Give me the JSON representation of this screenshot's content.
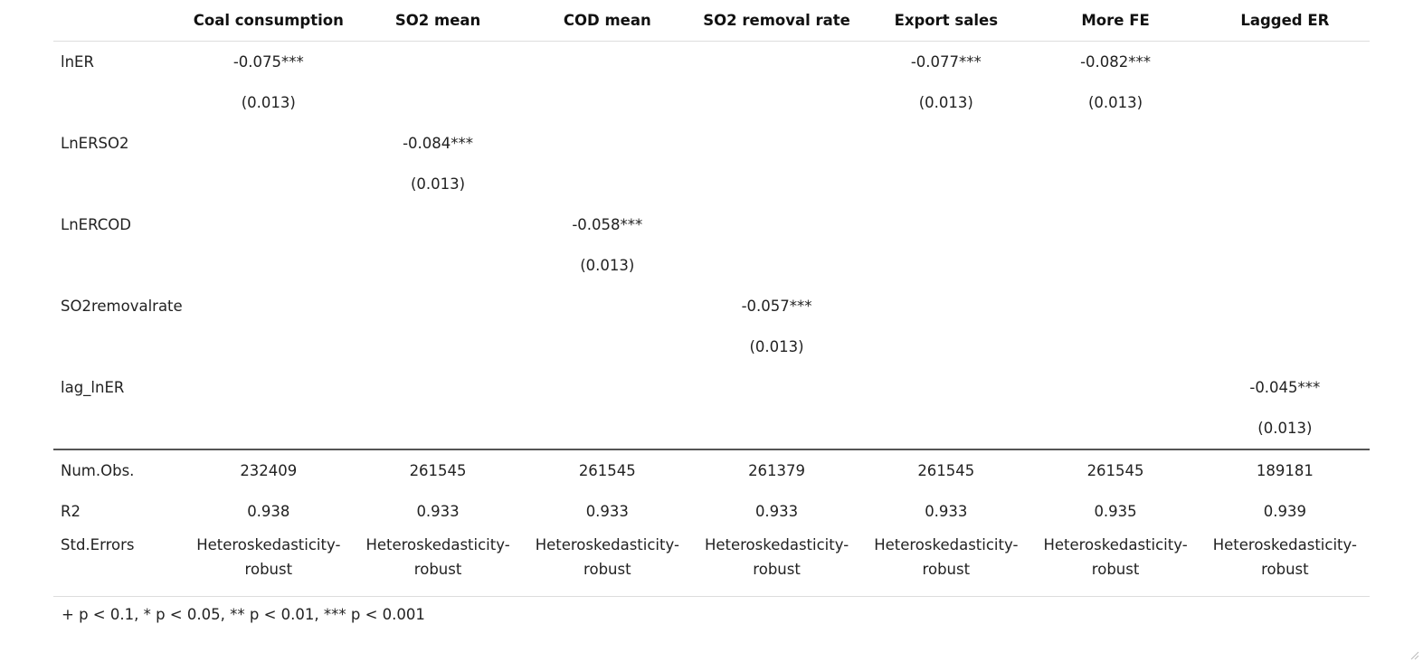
{
  "table": {
    "columns": [
      "",
      "Coal consumption",
      "SO2 mean",
      "COD mean",
      "SO2 removal rate",
      "Export sales",
      "More FE",
      "Lagged ER"
    ],
    "coefficient_rows": [
      {
        "cells": [
          "lnER",
          "-0.075***",
          "",
          "",
          "",
          "-0.077***",
          "-0.082***",
          ""
        ]
      },
      {
        "cells": [
          "",
          "(0.013)",
          "",
          "",
          "",
          "(0.013)",
          "(0.013)",
          ""
        ]
      },
      {
        "cells": [
          "LnERSO2",
          "",
          "-0.084***",
          "",
          "",
          "",
          "",
          ""
        ]
      },
      {
        "cells": [
          "",
          "",
          "(0.013)",
          "",
          "",
          "",
          "",
          ""
        ]
      },
      {
        "cells": [
          "LnERCOD",
          "",
          "",
          "-0.058***",
          "",
          "",
          "",
          ""
        ]
      },
      {
        "cells": [
          "",
          "",
          "",
          "(0.013)",
          "",
          "",
          "",
          ""
        ]
      },
      {
        "cells": [
          "SO2removalrate",
          "",
          "",
          "",
          "-0.057***",
          "",
          "",
          ""
        ]
      },
      {
        "cells": [
          "",
          "",
          "",
          "",
          "(0.013)",
          "",
          "",
          ""
        ]
      },
      {
        "cells": [
          "lag_lnER",
          "",
          "",
          "",
          "",
          "",
          "",
          "-0.045***"
        ]
      },
      {
        "cells": [
          "",
          "",
          "",
          "",
          "",
          "",
          "",
          "(0.013)"
        ]
      }
    ],
    "stat_rows": [
      {
        "cells": [
          "Num.Obs.",
          "232409",
          "261545",
          "261545",
          "261379",
          "261545",
          "261545",
          "189181"
        ]
      },
      {
        "cells": [
          "R2",
          "0.938",
          "0.933",
          "0.933",
          "0.933",
          "0.933",
          "0.935",
          "0.939"
        ]
      },
      {
        "cells": [
          "Std.Errors",
          "Heteroskedasticity-robust",
          "Heteroskedasticity-robust",
          "Heteroskedasticity-robust",
          "Heteroskedasticity-robust",
          "Heteroskedasticity-robust",
          "Heteroskedasticity-robust",
          "Heteroskedasticity-robust"
        ]
      }
    ]
  },
  "footnote": "+ p < 0.1, * p < 0.05, ** p < 0.01, *** p < 0.001",
  "colors": {
    "text": "#222222",
    "rule_heavy": "#555555",
    "rule_light": "#dddddd"
  }
}
